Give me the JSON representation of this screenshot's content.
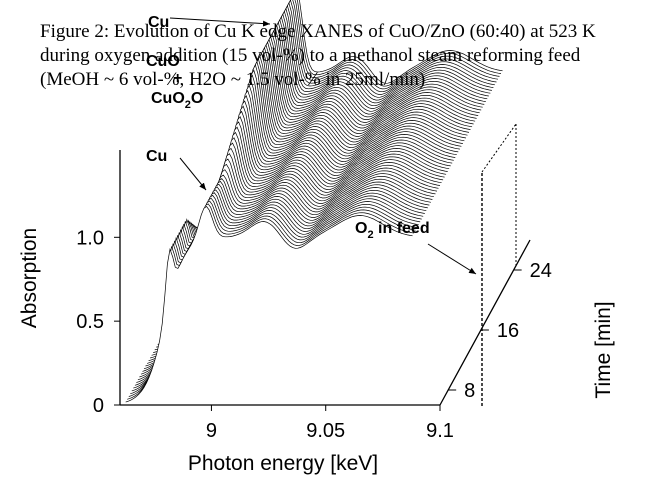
{
  "caption": "Figure 2: Evolution of Cu K edge XANES of CuO/ZnO (60:40) at 523 K during oxygen addition (15 vol-%) to a methanol steam reforming feed (MeOH ~ 6 vol-%, H2O ~ 1.5 vol-% in 25ml/min)",
  "chart_data": {
    "type": "line",
    "xlabel": "Photon energy [keV]",
    "ylabel": "Absorption",
    "zlabel": "Time [min]",
    "x_ticks": [
      "9",
      "9.05",
      "9.1"
    ],
    "y_ticks": [
      "0",
      "0.5",
      "1.0"
    ],
    "z_ticks": [
      "8",
      "16",
      "24"
    ],
    "xlim": [
      8.96,
      9.1
    ],
    "ylim": [
      0,
      1.3
    ],
    "zlim": [
      6,
      28
    ],
    "annotations": [
      "Cu",
      "CuO",
      "+",
      "Cu2O",
      "Cu",
      "O2 in feed"
    ],
    "series_count": 60
  },
  "colors": {
    "lines": "#000000",
    "background": "#ffffff"
  }
}
